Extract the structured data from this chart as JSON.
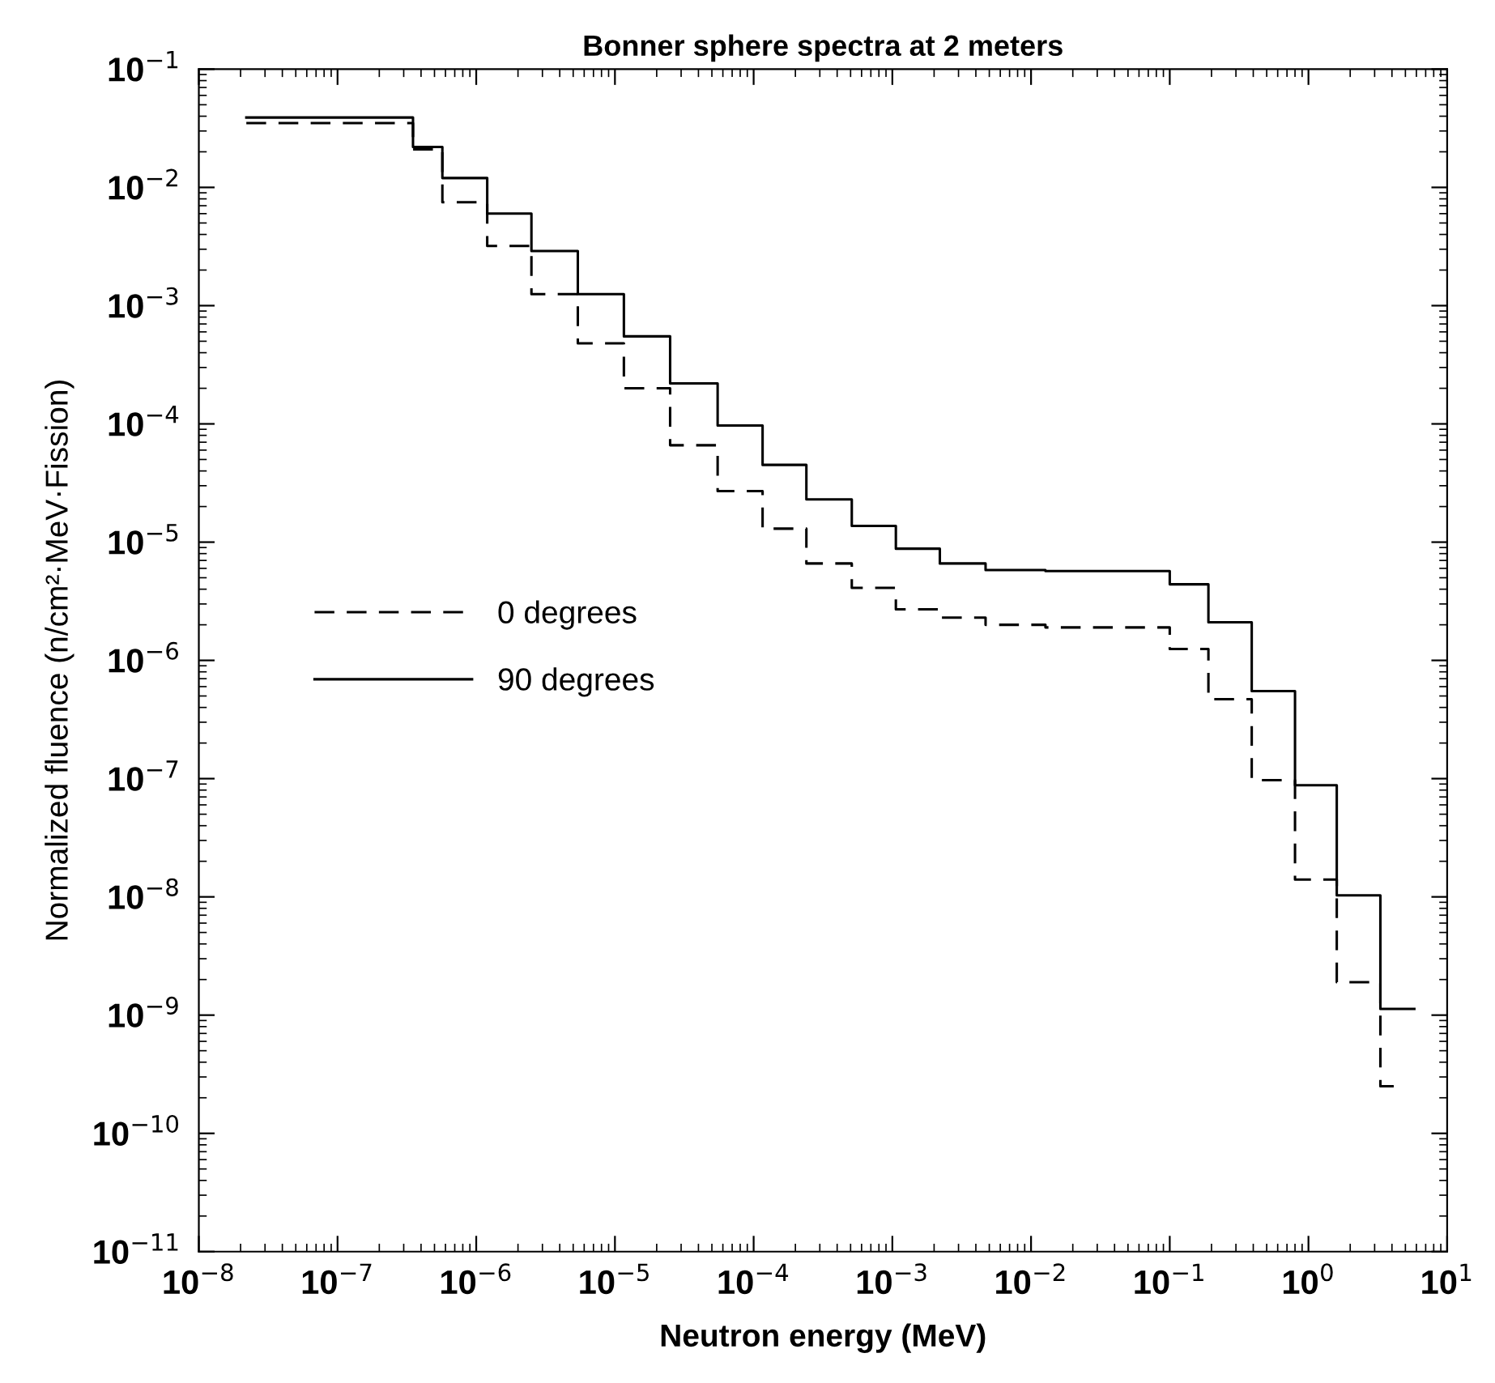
{
  "chart_data": {
    "type": "step",
    "title": "Bonner sphere spectra at 2 meters",
    "xlabel": "Neutron energy (MeV)",
    "ylabel": "Normalized fluence (n/cm²·MeV·Fission)",
    "log": "xy",
    "grid": false,
    "legend": "center left",
    "marker": "none",
    "xlim": [
      1e-08,
      10
    ],
    "ylim": [
      1e-11,
      0.1
    ],
    "xticks": [
      {
        "value": 1e-08,
        "label": "10$^{−8}$"
      },
      {
        "value": 1e-07,
        "label": "10$^{−7}$"
      },
      {
        "value": 1e-06,
        "label": "10$^{−6}$"
      },
      {
        "value": 1e-05,
        "label": "10$^{−5}$"
      },
      {
        "value": 0.0001,
        "label": "10$^{−4}$"
      },
      {
        "value": 0.001,
        "label": "10$^{−3}$"
      },
      {
        "value": 0.01,
        "label": "10$^{−2}$"
      },
      {
        "value": 0.1,
        "label": "10$^{−1}$"
      },
      {
        "value": 1,
        "label": "10$^{0}$"
      },
      {
        "value": 10,
        "label": "10$^{1}$"
      }
    ],
    "yticks": [
      {
        "value": 1e-11,
        "label": "10$^{−11}$"
      },
      {
        "value": 1e-10,
        "label": "10$^{−10}$"
      },
      {
        "value": 1e-09,
        "label": "10$^{−9}$"
      },
      {
        "value": 1e-08,
        "label": "10$^{−8}$"
      },
      {
        "value": 1e-07,
        "label": "10$^{−7}$"
      },
      {
        "value": 1e-06,
        "label": "10$^{−6}$"
      },
      {
        "value": 1e-05,
        "label": "10$^{−5}$"
      },
      {
        "value": 0.0001,
        "label": "10$^{−4}$"
      },
      {
        "value": 0.001,
        "label": "10$^{−3}$"
      },
      {
        "value": 0.01,
        "label": "10$^{−2}$"
      },
      {
        "value": 0.1,
        "label": "10$^{−1}$"
      }
    ],
    "series": [
      {
        "name": "0 degrees",
        "color": "#000000",
        "line_style": "dashed",
        "x": [
          2.2e-08,
          3.5e-07,
          5.7e-07,
          1.2e-06,
          2.5e-06,
          5.4e-06,
          1.16e-05,
          2.5e-05,
          5.5e-05,
          0.000116,
          0.00024,
          0.00051,
          0.00106,
          0.0022,
          0.0047,
          0.0127,
          0.1,
          0.19,
          0.39,
          0.8,
          1.6,
          3.3,
          4.2
        ],
        "values": [
          0.035,
          0.021,
          0.0075,
          0.0032,
          0.00125,
          0.00048,
          0.0002,
          6.6e-05,
          2.7e-05,
          1.3e-05,
          6.6e-06,
          4.1e-06,
          2.7e-06,
          2.3e-06,
          2e-06,
          1.9e-06,
          1.25e-06,
          4.7e-07,
          9.7e-08,
          1.4e-08,
          1.9e-09,
          2.5e-10,
          2.5e-10
        ]
      },
      {
        "name": "90 degrees",
        "color": "#000000",
        "line_style": "solid",
        "x": [
          2.2e-08,
          3.5e-07,
          5.7e-07,
          1.2e-06,
          2.5e-06,
          5.4e-06,
          1.16e-05,
          2.5e-05,
          5.5e-05,
          0.000116,
          0.00024,
          0.00051,
          0.00106,
          0.0022,
          0.0047,
          0.0127,
          0.1,
          0.19,
          0.39,
          0.8,
          1.6,
          3.3,
          5.8
        ],
        "values": [
          0.039,
          0.022,
          0.012,
          0.006,
          0.0029,
          0.00125,
          0.00055,
          0.00022,
          9.7e-05,
          4.5e-05,
          2.3e-05,
          1.37e-05,
          8.8e-06,
          6.6e-06,
          5.8e-06,
          5.7e-06,
          4.4e-06,
          2.1e-06,
          5.5e-07,
          8.8e-08,
          1.03e-08,
          1.13e-09,
          1.13e-09
        ]
      }
    ]
  }
}
